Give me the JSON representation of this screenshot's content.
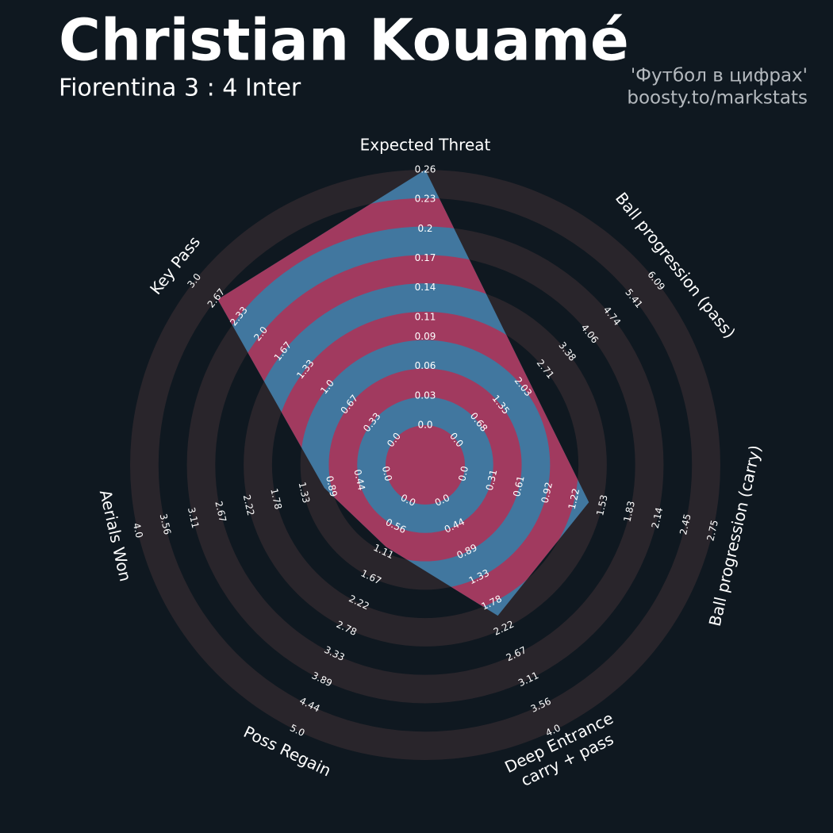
{
  "chart_data": {
    "type": "radar",
    "title": "Christian Kouamé",
    "subtitle": "Fiorentina 3 : 4 Inter",
    "credits": [
      "'Футбол в цифрах'",
      "boosty.to/markstats"
    ],
    "color": "#41779f",
    "compare_color": "#a13a5f",
    "ring_color": "#29252b",
    "values": [
      0.26,
      2.23,
      1.38,
      2.0,
      1.0,
      1.0,
      2.65
    ],
    "axes": [
      {
        "label": [
          "Expected Threat"
        ],
        "lim": [
          0,
          0.26
        ],
        "ticks": [
          {
            "value": 0,
            "label": "0.0"
          },
          0.03,
          0.06,
          0.09,
          0.11,
          0.14,
          0.17,
          {
            "value": 0.2,
            "label": "0.2"
          },
          0.23,
          0.26
        ]
      },
      {
        "label": [
          "Ball progression (pass)"
        ],
        "lim": [
          0,
          6.09
        ],
        "ticks": [
          {
            "value": 0,
            "label": "0.0"
          },
          0.68,
          1.35,
          2.03,
          2.71,
          3.38,
          4.06,
          4.74,
          5.41,
          6.09
        ]
      },
      {
        "label": [
          "Ball progression (carry)"
        ],
        "lim": [
          0,
          2.75
        ],
        "ticks": [
          {
            "value": 0,
            "label": "0.0"
          },
          0.31,
          0.61,
          0.92,
          1.22,
          1.53,
          1.83,
          2.14,
          2.45,
          2.75
        ]
      },
      {
        "label": [
          "Deep Entrance",
          "carry + pass"
        ],
        "lim": [
          0,
          4.0
        ],
        "ticks": [
          {
            "value": 0,
            "label": "0.0"
          },
          0.44,
          0.89,
          1.33,
          1.78,
          2.22,
          2.67,
          3.11,
          3.56,
          {
            "value": 4,
            "label": "4.0"
          }
        ]
      },
      {
        "label": [
          "Poss Regain"
        ],
        "lim": [
          0,
          5.0
        ],
        "ticks": [
          {
            "value": 0,
            "label": "0.0"
          },
          0.56,
          1.11,
          1.67,
          2.22,
          2.78,
          3.33,
          3.89,
          4.44,
          {
            "value": 5,
            "label": "5.0"
          }
        ]
      },
      {
        "label": [
          "Aerials Won"
        ],
        "lim": [
          0,
          4.0
        ],
        "ticks": [
          {
            "value": 0,
            "label": "0.0"
          },
          0.44,
          0.89,
          1.33,
          1.78,
          2.22,
          2.67,
          3.11,
          3.56,
          {
            "value": 4,
            "label": "4.0"
          }
        ]
      },
      {
        "label": [
          "Key Pass"
        ],
        "lim": [
          0,
          3.0
        ],
        "ticks": [
          {
            "value": 0,
            "label": "0.0"
          },
          0.33,
          0.67,
          {
            "value": 1,
            "label": "1.0"
          },
          1.33,
          1.67,
          {
            "value": 2,
            "label": "2.0"
          },
          2.33,
          2.67,
          {
            "value": 3,
            "label": "3.0"
          }
        ]
      }
    ]
  }
}
